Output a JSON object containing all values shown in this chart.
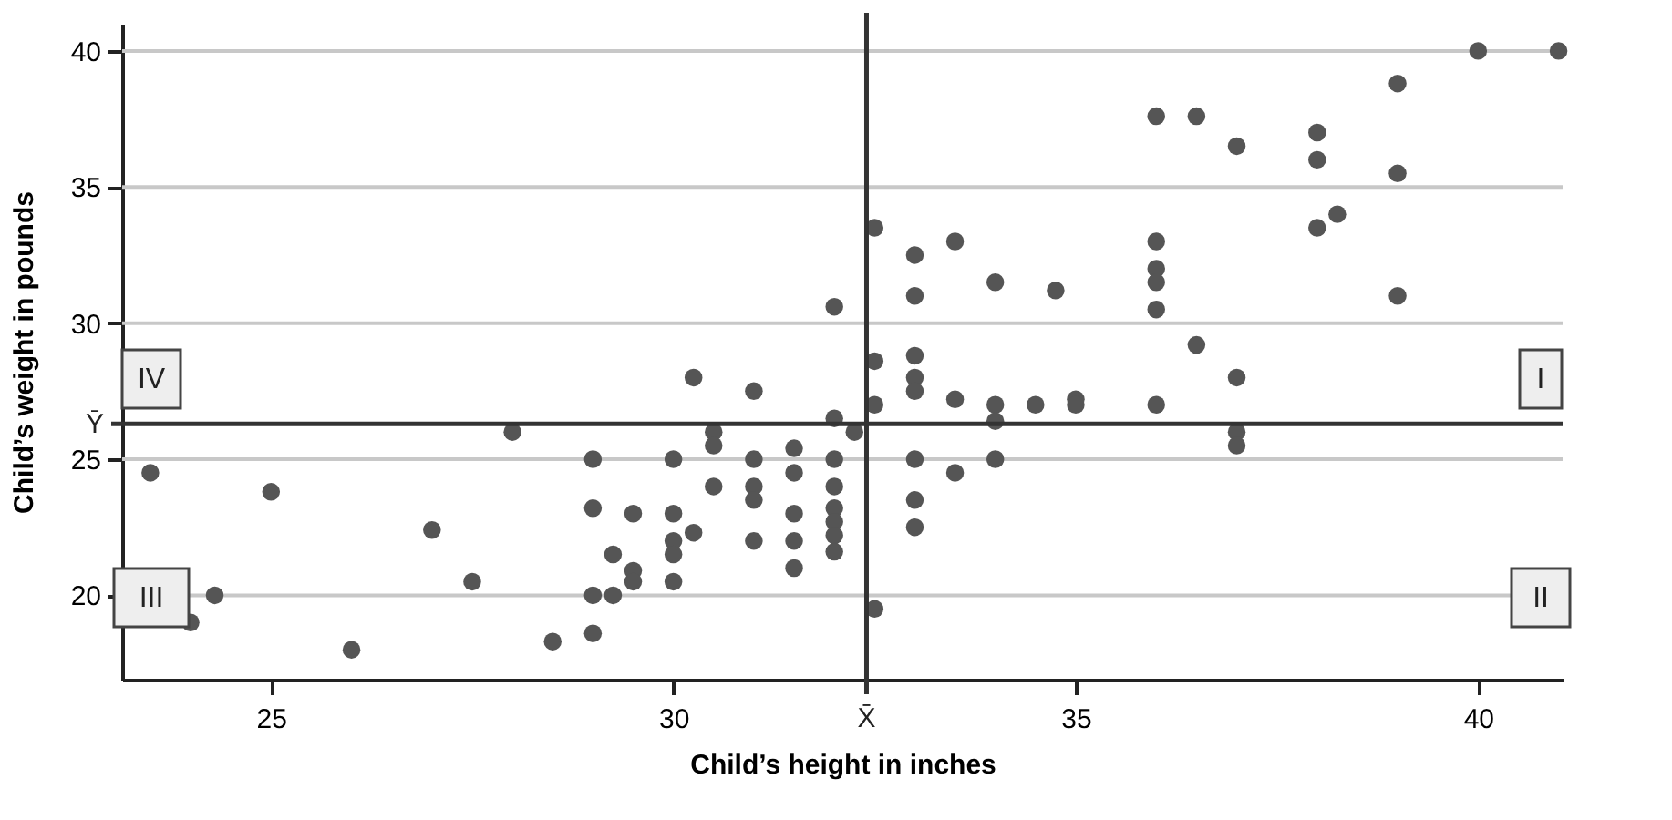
{
  "chart_data": {
    "type": "scatter",
    "xlabel": "Child’s height in inches",
    "ylabel": "Child’s weight in pounds",
    "x": [
      23.5,
      24.0,
      24.3,
      25,
      26,
      27,
      27.5,
      28.0,
      28.5,
      29,
      29,
      29,
      29,
      29.25,
      29.25,
      29.5,
      29.5,
      29.5,
      30,
      30,
      30,
      30,
      30,
      30.25,
      30.25,
      30.5,
      30.5,
      30.5,
      31,
      31,
      31,
      31,
      31,
      31.5,
      31.5,
      31.5,
      31.5,
      31.5,
      32,
      32,
      32,
      32,
      32,
      32,
      32,
      32,
      32.25,
      32.5,
      32.5,
      32.5,
      32.5,
      33,
      33,
      33,
      33,
      33,
      33,
      33,
      33,
      33.5,
      33.5,
      33.5,
      34,
      34,
      34,
      34,
      34.5,
      34.75,
      35,
      35,
      36,
      36,
      36,
      36,
      36,
      36,
      36.5,
      36.5,
      37,
      37,
      37,
      37,
      38,
      38,
      38,
      38.25,
      39,
      39,
      39,
      40,
      41
    ],
    "series": [
      {
        "color": "#555555",
        "values": [
          24.5,
          19.0,
          20.0,
          23.8,
          18.0,
          22.4,
          20.5,
          26.0,
          18.3,
          25,
          23.2,
          20,
          18.6,
          21.5,
          20,
          23.0,
          20.9,
          20.5,
          25,
          23.0,
          22.0,
          21.5,
          20.5,
          28.0,
          22.3,
          26.0,
          25.5,
          24.0,
          27.5,
          25,
          24,
          23.5,
          22.0,
          25.4,
          24.5,
          23.0,
          22.0,
          21.0,
          30.6,
          26.5,
          25,
          24,
          23.2,
          22.7,
          22.2,
          21.6,
          26.0,
          33.5,
          28.6,
          27.0,
          19.5,
          32.5,
          31.0,
          28.8,
          28.0,
          27.5,
          25,
          23.5,
          22.5,
          33.0,
          27.2,
          24.5,
          31.5,
          27.0,
          26.4,
          25,
          27.0,
          31.2,
          27.2,
          27.0,
          37.6,
          33.0,
          32.0,
          31.5,
          30.5,
          27.0,
          37.6,
          29.2,
          36.5,
          28.0,
          26.0,
          25.5,
          37.0,
          36.0,
          33.5,
          34.0,
          38.8,
          35.5,
          31.0,
          40,
          40
        ]
      }
    ],
    "xlim": [
      23.15,
      41.05
    ],
    "ylim": [
      16.9,
      41
    ],
    "xticks": [
      25,
      30,
      35,
      40
    ],
    "yticks": [
      20,
      25,
      30,
      35,
      40
    ],
    "ref_lines": [
      {
        "axis": "x",
        "value": 32.4,
        "label": "X̄",
        "color": "#333333"
      },
      {
        "axis": "y",
        "value": 26.3,
        "label": "Ȳ",
        "color": "#333333"
      }
    ],
    "annotations": [
      "I",
      "II",
      "III",
      "IV"
    ],
    "grid": "y",
    "marker": "circle"
  }
}
